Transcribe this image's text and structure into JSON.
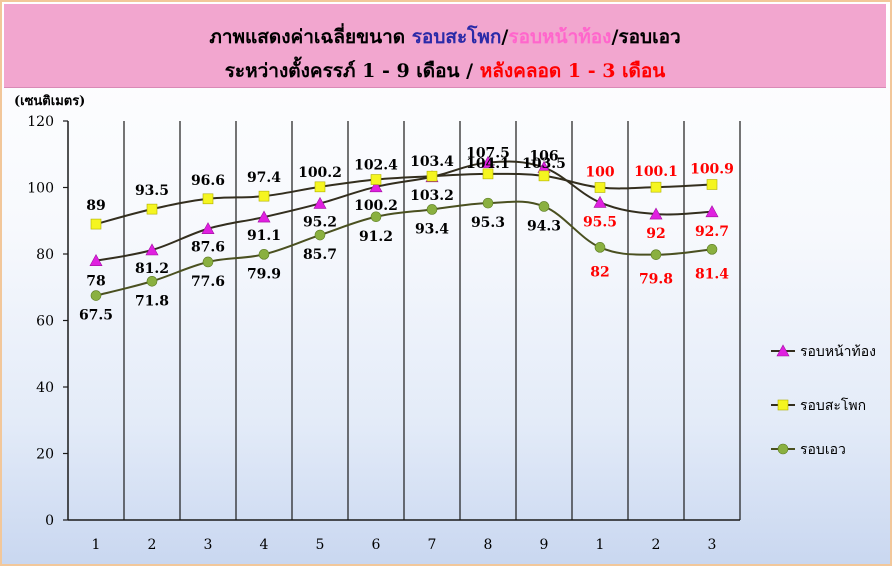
{
  "chart_data": {
    "type": "line",
    "title_line_1": [
      {
        "text": "ภาพแสดงค่าเฉลี่ยขนาด ",
        "color": "#000000"
      },
      {
        "text": "รอบสะโพก",
        "color": "#2a2aa8"
      },
      {
        "text": "/",
        "color": "#000000"
      },
      {
        "text": "รอบหน้าท้อง",
        "color": "#ff66cc"
      },
      {
        "text": "/รอบเอว",
        "color": "#000000"
      }
    ],
    "title_line_2": [
      {
        "text": "ระหว่างตั้งครรภ์ 1 - 9 เดือน / ",
        "color": "#000000"
      },
      {
        "text": "หลังคลอด 1 - 3 เดือน",
        "color": "#ff0000"
      }
    ],
    "ylabel": "(เซนติเมตร)",
    "categories": [
      "1",
      "2",
      "3",
      "4",
      "5",
      "6",
      "7",
      "8",
      "9",
      "1",
      "2",
      "3"
    ],
    "ylim": [
      0,
      120
    ],
    "yticks": [
      0,
      20,
      40,
      60,
      80,
      100,
      120
    ],
    "grid": "vertical",
    "legend": "right",
    "series": [
      {
        "name": "รอบหน้าท้อง",
        "marker": "triangle",
        "marker_color": "#e020e0",
        "line_color": "#332e1e",
        "values": [
          78,
          81.2,
          87.6,
          91.1,
          95.2,
          100.2,
          103.2,
          107.5,
          106,
          95.5,
          92,
          92.7
        ],
        "labels": [
          "78",
          "81.2",
          "87.6",
          "91.1",
          "95.2",
          "100.2",
          "103.2",
          "107.5",
          "106",
          "95.5",
          "92",
          "92.7"
        ]
      },
      {
        "name": "รอบสะโพก",
        "marker": "square",
        "marker_color": "#f5f520",
        "line_color": "#332e1e",
        "values": [
          89,
          93.5,
          96.6,
          97.4,
          100.2,
          102.4,
          103.4,
          104.1,
          103.5,
          100,
          100.1,
          100.9
        ],
        "labels": [
          "89",
          "93.5",
          "96.6",
          "97.4",
          "100.2",
          "102.4",
          "103.4",
          "104.1",
          "103.5",
          "100",
          "100.1",
          "100.9"
        ]
      },
      {
        "name": "รอบเอว",
        "marker": "circle",
        "marker_color": "#8ab040",
        "line_color": "#4a5020",
        "values": [
          67.5,
          71.8,
          77.6,
          79.9,
          85.7,
          91.2,
          93.4,
          95.3,
          94.3,
          82,
          79.8,
          81.4
        ],
        "labels": [
          "67.5",
          "71.8",
          "77.6",
          "79.9",
          "85.7",
          "91.2",
          "93.4",
          "95.3",
          "94.3",
          "82",
          "79.8",
          "81.4"
        ]
      }
    ],
    "label_color_pregnancy": "#000000",
    "label_color_postpartum": "#ff0000",
    "postpartum_start_index": 9
  }
}
